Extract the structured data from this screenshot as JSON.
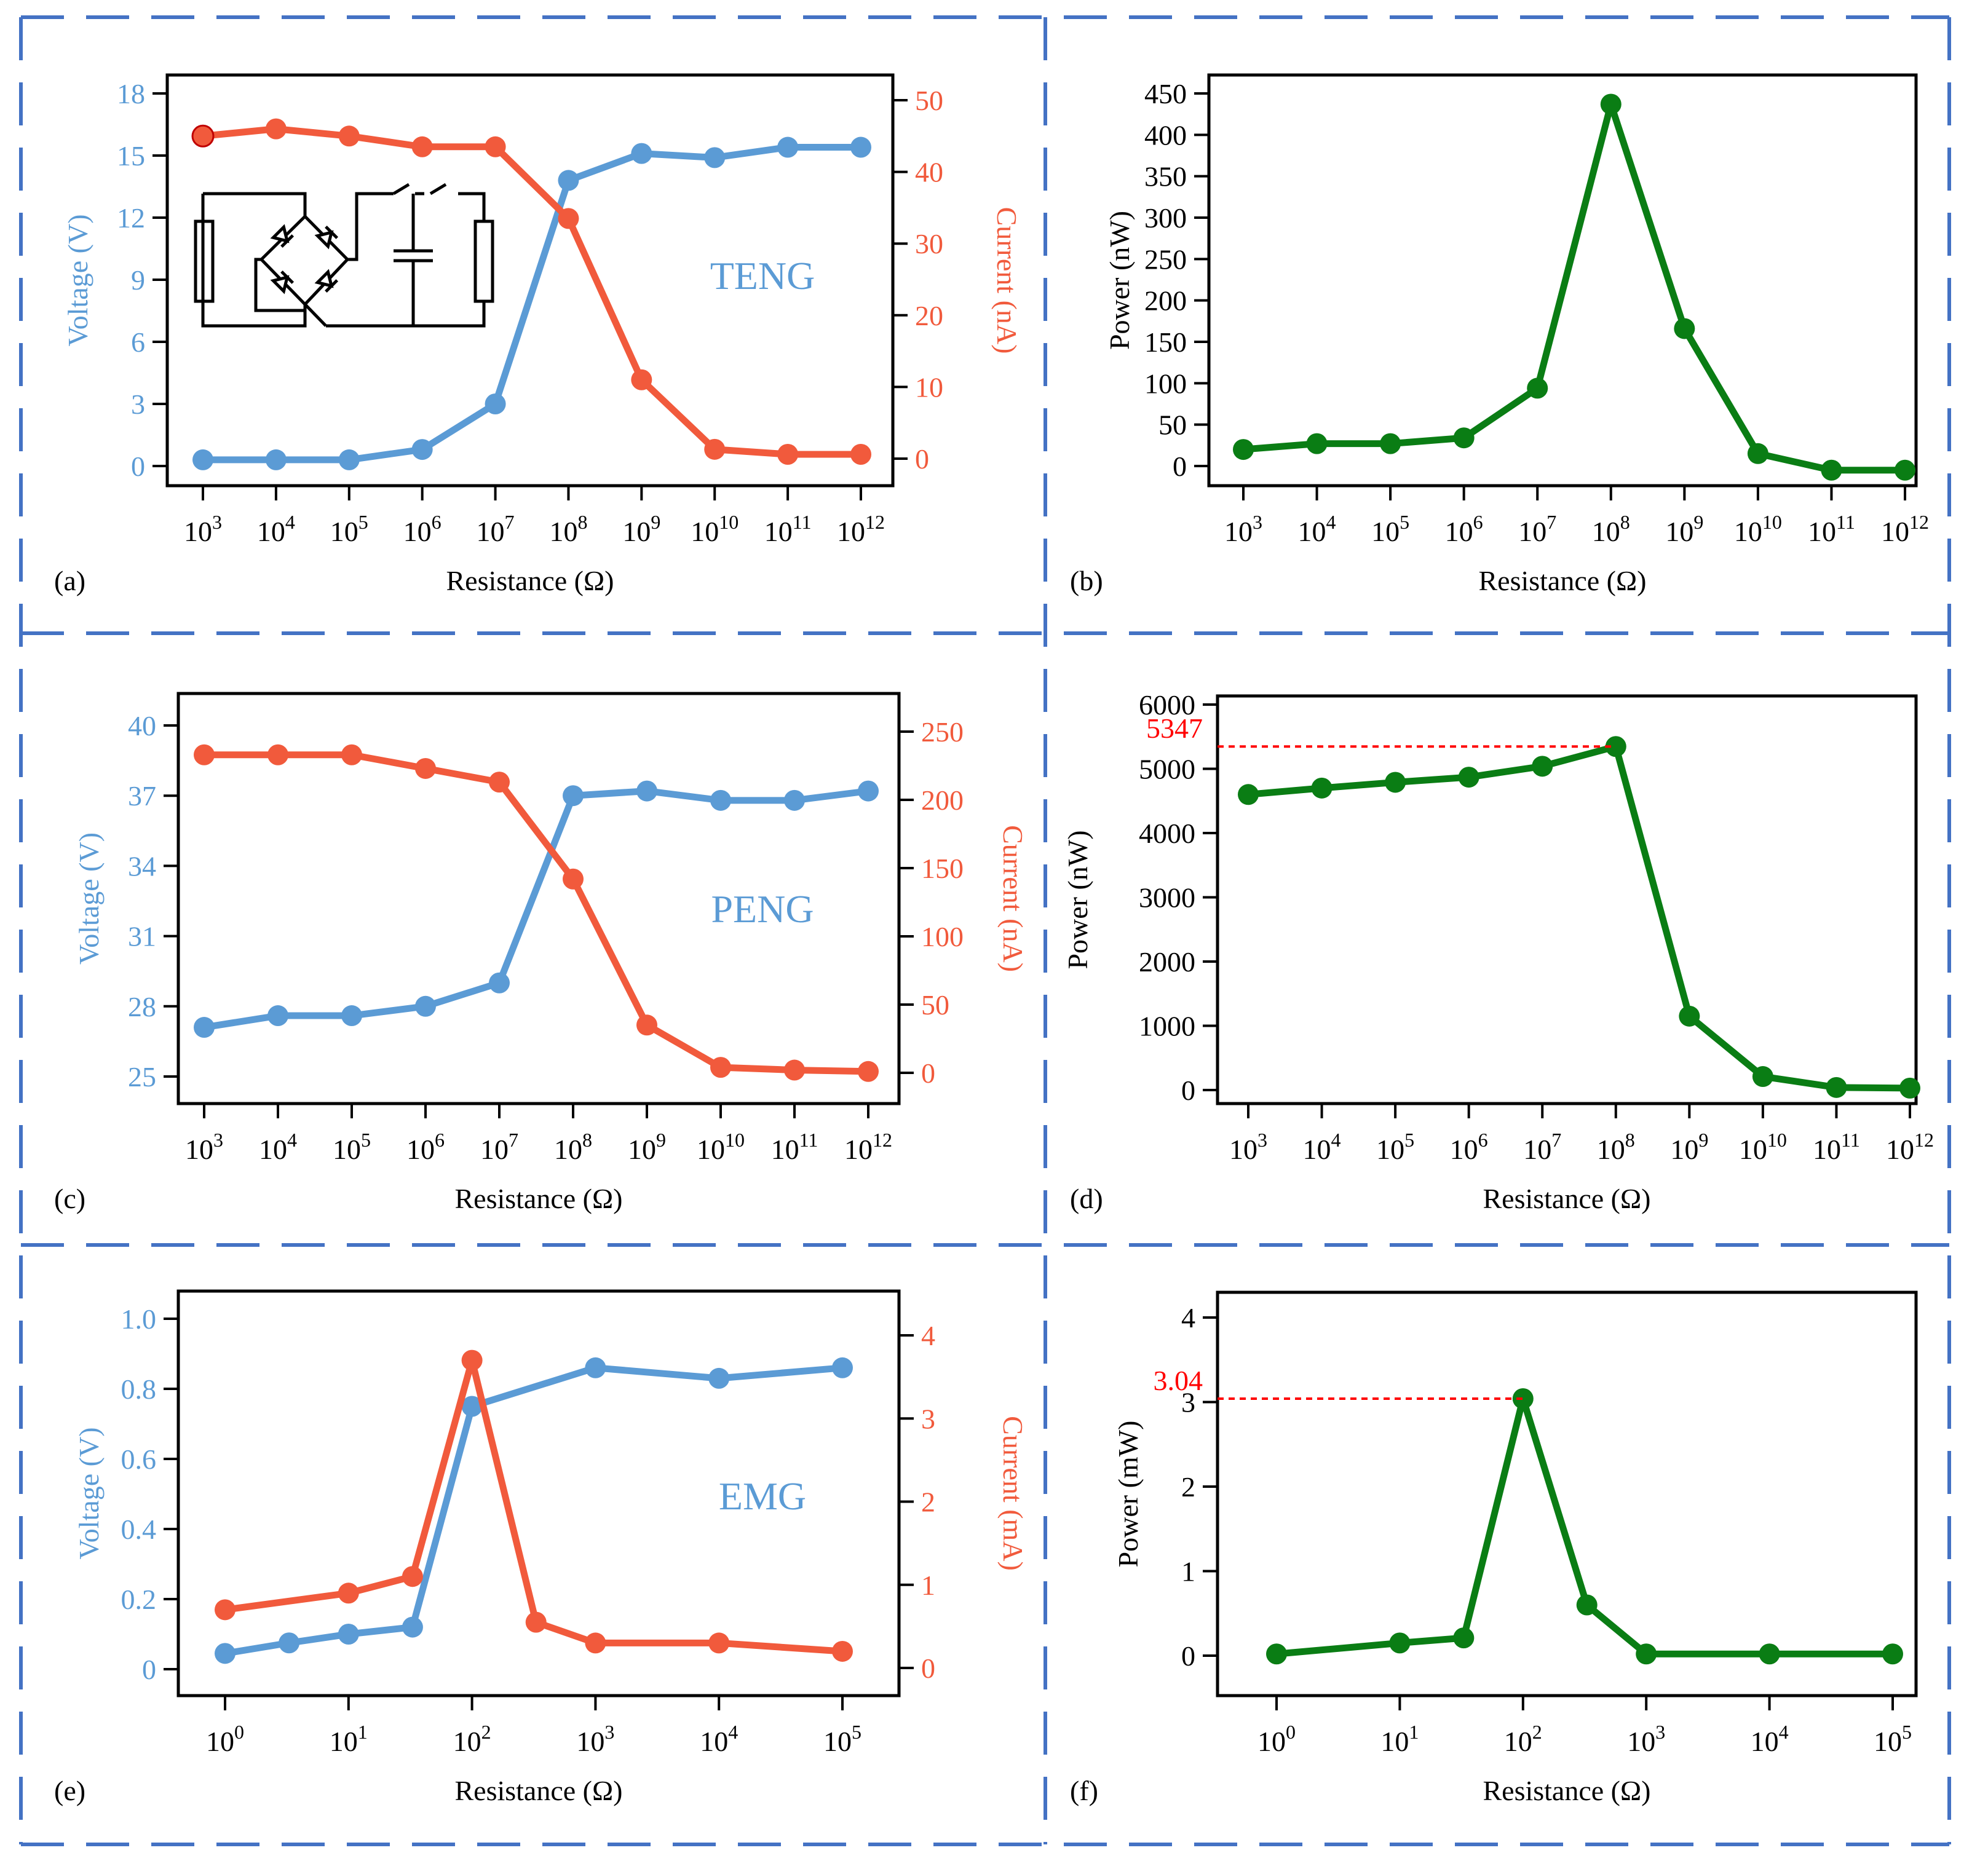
{
  "colors": {
    "voltage": "#5b9bd5",
    "current": "#f15a3c",
    "power": "#0a7d14",
    "frame": "#4472c4",
    "annotation": "#ff0000",
    "axis": "#000000"
  },
  "panels": [
    {
      "letter": "(a)",
      "xlabel": "Resistance (Ω)",
      "ylabel": "Voltage (V)",
      "ylabel2": "Current (nA)",
      "device_label": "TENG",
      "has_circuit": true,
      "xtick_labels": [
        {
          "base": "10",
          "exp": "3"
        },
        {
          "base": "10",
          "exp": "4"
        },
        {
          "base": "10",
          "exp": "5"
        },
        {
          "base": "10",
          "exp": "6"
        },
        {
          "base": "10",
          "exp": "7"
        },
        {
          "base": "10",
          "exp": "8"
        },
        {
          "base": "10",
          "exp": "9"
        },
        {
          "base": "10",
          "exp": "10"
        },
        {
          "base": "10",
          "exp": "11"
        },
        {
          "base": "10",
          "exp": "12"
        }
      ],
      "y_ticks": [
        "0",
        "3",
        "6",
        "9",
        "12",
        "15",
        "18"
      ],
      "y2_ticks": [
        "0",
        "10",
        "20",
        "30",
        "40",
        "50"
      ]
    },
    {
      "letter": "(b)",
      "xlabel": "Resistance (Ω)",
      "ylabel": "Power (nW)",
      "xtick_labels": [
        {
          "base": "10",
          "exp": "3"
        },
        {
          "base": "10",
          "exp": "4"
        },
        {
          "base": "10",
          "exp": "5"
        },
        {
          "base": "10",
          "exp": "6"
        },
        {
          "base": "10",
          "exp": "7"
        },
        {
          "base": "10",
          "exp": "8"
        },
        {
          "base": "10",
          "exp": "9"
        },
        {
          "base": "10",
          "exp": "10"
        },
        {
          "base": "10",
          "exp": "11"
        },
        {
          "base": "10",
          "exp": "12"
        }
      ],
      "y_ticks": [
        "0",
        "50",
        "100",
        "150",
        "200",
        "250",
        "300",
        "350",
        "400",
        "450"
      ]
    },
    {
      "letter": "(c)",
      "xlabel": "Resistance (Ω)",
      "ylabel": "Voltage (V)",
      "ylabel2": "Current (nA)",
      "device_label": "PENG",
      "xtick_labels": [
        {
          "base": "10",
          "exp": "3"
        },
        {
          "base": "10",
          "exp": "4"
        },
        {
          "base": "10",
          "exp": "5"
        },
        {
          "base": "10",
          "exp": "6"
        },
        {
          "base": "10",
          "exp": "7"
        },
        {
          "base": "10",
          "exp": "8"
        },
        {
          "base": "10",
          "exp": "9"
        },
        {
          "base": "10",
          "exp": "10"
        },
        {
          "base": "10",
          "exp": "11"
        },
        {
          "base": "10",
          "exp": "12"
        }
      ],
      "y_ticks": [
        "25",
        "28",
        "31",
        "34",
        "37",
        "40"
      ],
      "y2_ticks": [
        "0",
        "50",
        "100",
        "150",
        "200",
        "250"
      ]
    },
    {
      "letter": "(d)",
      "xlabel": "Resistance (Ω)",
      "ylabel": "Power (nW)",
      "annotation": "5347",
      "xtick_labels": [
        {
          "base": "10",
          "exp": "3"
        },
        {
          "base": "10",
          "exp": "4"
        },
        {
          "base": "10",
          "exp": "5"
        },
        {
          "base": "10",
          "exp": "6"
        },
        {
          "base": "10",
          "exp": "7"
        },
        {
          "base": "10",
          "exp": "8"
        },
        {
          "base": "10",
          "exp": "9"
        },
        {
          "base": "10",
          "exp": "10"
        },
        {
          "base": "10",
          "exp": "11"
        },
        {
          "base": "10",
          "exp": "12"
        }
      ],
      "y_ticks": [
        "0",
        "1000",
        "2000",
        "3000",
        "4000",
        "5000",
        "6000"
      ]
    },
    {
      "letter": "(e)",
      "xlabel": "Resistance (Ω)",
      "ylabel": "Voltage (V)",
      "ylabel2": "Current (mA)",
      "device_label": "EMG",
      "xtick_labels": [
        {
          "base": "10",
          "exp": "0"
        },
        {
          "base": "10",
          "exp": "1"
        },
        {
          "base": "10",
          "exp": "2"
        },
        {
          "base": "10",
          "exp": "3"
        },
        {
          "base": "10",
          "exp": "4"
        },
        {
          "base": "10",
          "exp": "5"
        }
      ],
      "y_ticks": [
        "0",
        "0.2",
        "0.4",
        "0.6",
        "0.8",
        "1.0"
      ],
      "y2_ticks": [
        "0",
        "1",
        "2",
        "3",
        "4"
      ]
    },
    {
      "letter": "(f)",
      "xlabel": "Resistance (Ω)",
      "ylabel": "Power (mW)",
      "annotation": "3.04",
      "xtick_labels": [
        {
          "base": "10",
          "exp": "0"
        },
        {
          "base": "10",
          "exp": "1"
        },
        {
          "base": "10",
          "exp": "2"
        },
        {
          "base": "10",
          "exp": "3"
        },
        {
          "base": "10",
          "exp": "4"
        },
        {
          "base": "10",
          "exp": "5"
        }
      ],
      "y_ticks": [
        "0",
        "1",
        "2",
        "3",
        "4"
      ]
    }
  ],
  "chart_data": [
    {
      "type": "line",
      "panel": "(a)",
      "x_scale": "log",
      "x": [
        1000.0,
        10000.0,
        100000.0,
        1000000.0,
        10000000.0,
        100000000.0,
        1000000000.0,
        10000000000.0,
        100000000000.0,
        1000000000000.0
      ],
      "xlim_exp": [
        3,
        12
      ],
      "series": [
        {
          "axis": "left",
          "color": "#5b9bd5",
          "values": [
            0.3,
            0.3,
            0.3,
            0.8,
            3.0,
            13.8,
            15.1,
            14.9,
            15.4,
            15.4
          ]
        },
        {
          "axis": "right",
          "color": "#f15a3c",
          "values": [
            45,
            46,
            45,
            43.5,
            43.5,
            33.5,
            11,
            1.3,
            0.6,
            0.6
          ]
        }
      ],
      "ylim": [
        0,
        18
      ],
      "y2lim": [
        0,
        50
      ]
    },
    {
      "type": "line",
      "panel": "(b)",
      "x_scale": "log",
      "x": [
        1000.0,
        10000.0,
        100000.0,
        1000000.0,
        10000000.0,
        100000000.0,
        1000000000.0,
        10000000000.0,
        100000000000.0,
        1000000000000.0
      ],
      "xlim_exp": [
        3,
        12
      ],
      "series": [
        {
          "color": "#0a7d14",
          "values": [
            20,
            27,
            27,
            34,
            94,
            437,
            166,
            15,
            -5,
            -5
          ]
        }
      ],
      "ylim": [
        0,
        450
      ]
    },
    {
      "type": "line",
      "panel": "(c)",
      "x_scale": "log",
      "x": [
        1000.0,
        10000.0,
        100000.0,
        1000000.0,
        10000000.0,
        100000000.0,
        1000000000.0,
        10000000000.0,
        100000000000.0,
        1000000000000.0
      ],
      "xlim_exp": [
        3,
        12
      ],
      "series": [
        {
          "axis": "left",
          "color": "#5b9bd5",
          "values": [
            27.1,
            27.6,
            27.6,
            28.0,
            29.0,
            37.0,
            37.2,
            36.8,
            36.8,
            37.2
          ]
        },
        {
          "axis": "right",
          "color": "#f15a3c",
          "values": [
            233,
            233,
            233,
            223,
            213,
            142,
            35,
            4,
            2,
            1
          ]
        }
      ],
      "ylim": [
        25,
        40
      ],
      "y2lim": [
        0,
        250
      ]
    },
    {
      "type": "line",
      "panel": "(d)",
      "x_scale": "log",
      "x": [
        1000.0,
        10000.0,
        100000.0,
        1000000.0,
        10000000.0,
        100000000.0,
        1000000000.0,
        10000000000.0,
        100000000000.0,
        1000000000000.0
      ],
      "xlim_exp": [
        3,
        12
      ],
      "series": [
        {
          "color": "#0a7d14",
          "values": [
            4600,
            4700,
            4790,
            4870,
            5040,
            5347,
            1150,
            210,
            40,
            30
          ]
        }
      ],
      "ylim": [
        0,
        6000
      ],
      "annotation_value": 5347
    },
    {
      "type": "line",
      "panel": "(e)",
      "x_scale": "log",
      "xlim_exp": [
        0,
        5
      ],
      "series": [
        {
          "axis": "left",
          "color": "#5b9bd5",
          "x": [
            1,
            3.3,
            10,
            33,
            100,
            1000,
            10000,
            100000
          ],
          "values": [
            0.045,
            0.075,
            0.1,
            0.12,
            0.75,
            0.86,
            0.83,
            0.86
          ]
        },
        {
          "axis": "right",
          "color": "#f15a3c",
          "x": [
            1,
            10,
            33,
            100,
            330,
            1000,
            10000,
            100000
          ],
          "values": [
            0.7,
            0.9,
            1.1,
            3.7,
            0.55,
            0.3,
            0.3,
            0.2
          ]
        }
      ],
      "ylim": [
        0,
        1.0
      ],
      "y2lim": [
        0,
        4
      ]
    },
    {
      "type": "line",
      "panel": "(f)",
      "x_scale": "log",
      "xlim_exp": [
        0,
        5
      ],
      "series": [
        {
          "color": "#0a7d14",
          "x": [
            1,
            10,
            33,
            100,
            330,
            1000,
            10000,
            100000
          ],
          "values": [
            0.02,
            0.15,
            0.21,
            3.04,
            0.6,
            0.02,
            0.02,
            0.02
          ]
        }
      ],
      "ylim": [
        0,
        4
      ],
      "annotation_value": 3.04
    }
  ]
}
